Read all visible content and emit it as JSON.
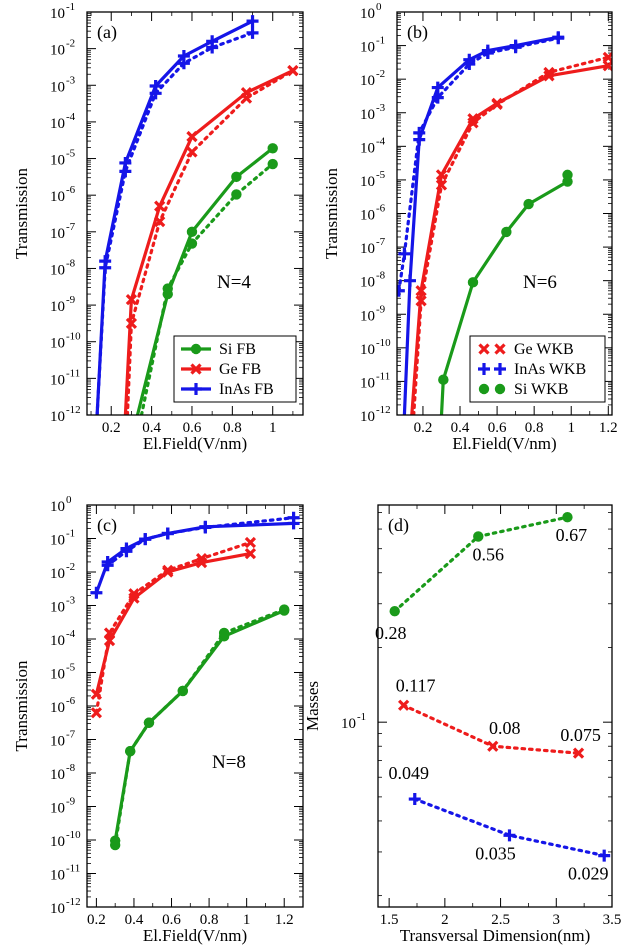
{
  "colors": {
    "green": "#1a9a1a",
    "red": "#ee1c1c",
    "blue": "#1515e8"
  },
  "chart_data": [
    {
      "id": "a",
      "type": "line",
      "panel_label": "(a)",
      "annotation": "N=4",
      "xlabel": "El.Field(V/nm)",
      "ylabel": "Transmission",
      "yscale": "log",
      "xlim": [
        0.08,
        1.15
      ],
      "ylim_exp": [
        -12,
        -1
      ],
      "xticks": [
        "0.2",
        "0.4",
        "0.6",
        "0.8",
        "1"
      ],
      "xtick_values": [
        0.2,
        0.4,
        0.6,
        0.8,
        1.0
      ],
      "legend": {
        "position": "bottom-right",
        "entries": [
          "Si FB",
          "Ge FB",
          "InAs FB"
        ]
      },
      "series": [
        {
          "name": "Si FB",
          "color": "green",
          "marker": "circle",
          "style": "solid",
          "x": [
            0.33,
            0.48,
            0.6,
            0.82,
            1.0
          ],
          "log10y": [
            -12,
            -8.7,
            -7.0,
            -5.5,
            -4.72
          ]
        },
        {
          "name": "",
          "color": "green",
          "marker": "circle",
          "style": "dotted",
          "x": [
            0.35,
            0.48,
            0.6,
            0.82,
            1.0
          ],
          "log10y": [
            -12,
            -8.55,
            -7.32,
            -5.98,
            -5.15
          ]
        },
        {
          "name": "Ge FB",
          "color": "red",
          "marker": "x",
          "style": "solid",
          "x": [
            0.27,
            0.3,
            0.44,
            0.6,
            0.87,
            1.1
          ],
          "log10y": [
            -12,
            -8.85,
            -6.3,
            -4.4,
            -3.2,
            -2.6
          ]
        },
        {
          "name": "",
          "color": "red",
          "marker": "x",
          "style": "dotted",
          "x": [
            0.28,
            0.3,
            0.44,
            0.6,
            0.87,
            1.1
          ],
          "log10y": [
            -12,
            -9.5,
            -6.72,
            -4.82,
            -3.35,
            -2.6
          ]
        },
        {
          "name": "InAs FB",
          "color": "blue",
          "marker": "plus",
          "style": "solid",
          "x": [
            0.13,
            0.17,
            0.27,
            0.42,
            0.56,
            0.7,
            0.9
          ],
          "log10y": [
            -12,
            -7.8,
            -5.12,
            -3.02,
            -2.2,
            -1.8,
            -1.25
          ]
        },
        {
          "name": "",
          "color": "blue",
          "marker": "plus",
          "style": "dotted",
          "x": [
            0.13,
            0.17,
            0.27,
            0.42,
            0.56,
            0.7,
            0.9
          ],
          "log10y": [
            -12,
            -7.98,
            -5.35,
            -3.22,
            -2.4,
            -1.97,
            -1.57
          ]
        }
      ]
    },
    {
      "id": "b",
      "type": "line",
      "panel_label": "(b)",
      "annotation": "N=6",
      "xlabel": "El.Field(V/nm)",
      "ylabel": "Transmission",
      "yscale": "log",
      "xlim": [
        0.06,
        1.22
      ],
      "ylim_exp": [
        -12,
        0
      ],
      "xticks": [
        "0.2",
        "0.4",
        "0.6",
        "0.8",
        "1",
        "1.2"
      ],
      "xtick_values": [
        0.2,
        0.4,
        0.6,
        0.8,
        1.0,
        1.2
      ],
      "legend": {
        "position": "bottom-right",
        "entries": [
          "Ge WKB",
          "InAs WKB",
          "Si WKB"
        ]
      },
      "series": [
        {
          "name": "",
          "color": "blue",
          "marker": "plus",
          "style": "solid",
          "x": [
            0.1,
            0.13,
            0.18,
            0.28,
            0.45,
            0.55,
            0.7,
            0.93
          ],
          "log10y": [
            -12,
            -8.0,
            -3.8,
            -2.25,
            -1.42,
            -1.15,
            -1.0,
            -0.75
          ]
        },
        {
          "name": "InAs WKB",
          "color": "blue",
          "marker": "plus",
          "style": "dotted",
          "x": [
            0.07,
            0.1,
            0.18,
            0.28,
            0.45,
            0.55,
            0.7,
            0.93
          ],
          "log10y": [
            -8.3,
            -7.2,
            -3.6,
            -2.55,
            -1.55,
            -1.22,
            -1.05,
            -0.78
          ]
        },
        {
          "name": "",
          "color": "red",
          "marker": "x",
          "style": "solid",
          "x": [
            0.14,
            0.19,
            0.3,
            0.47,
            0.6,
            0.88,
            1.2
          ],
          "log10y": [
            -12,
            -8.3,
            -4.85,
            -3.18,
            -2.72,
            -1.9,
            -1.6
          ]
        },
        {
          "name": "Ge WKB",
          "color": "red",
          "marker": "x",
          "style": "dotted",
          "x": [
            0.15,
            0.19,
            0.3,
            0.47,
            0.6,
            0.88,
            1.2
          ],
          "log10y": [
            -12,
            -8.6,
            -5.15,
            -3.3,
            -2.75,
            -1.8,
            -1.35
          ]
        },
        {
          "name": "",
          "color": "green",
          "marker": "circle",
          "style": "solid",
          "x": [
            0.3,
            0.31,
            0.47,
            0.65,
            0.77,
            0.98
          ],
          "log10y": [
            -12,
            -10.95,
            -8.05,
            -6.55,
            -5.72,
            -5.05
          ]
        },
        {
          "name": "Si WKB",
          "color": "green",
          "marker": "circle",
          "style": "dotted",
          "x": [
            0.98
          ],
          "log10y": [
            -4.85
          ]
        }
      ]
    },
    {
      "id": "c",
      "type": "line",
      "panel_label": "(c)",
      "annotation": "N=8",
      "xlabel": "El.Field(V/nm)",
      "ylabel": "Transmission",
      "yscale": "log",
      "xlim": [
        0.15,
        1.3
      ],
      "ylim_exp": [
        -12,
        0
      ],
      "xticks": [
        "0.2",
        "0.4",
        "0.6",
        "0.8",
        "1",
        "1.2"
      ],
      "xtick_values": [
        0.2,
        0.4,
        0.6,
        0.8,
        1.0,
        1.2
      ],
      "series": [
        {
          "name": "",
          "color": "blue",
          "marker": "plus",
          "style": "solid",
          "x": [
            0.2,
            0.26,
            0.36,
            0.46,
            0.58,
            0.78,
            1.25
          ],
          "log10y": [
            -2.62,
            -1.7,
            -1.3,
            -1.02,
            -0.85,
            -0.65,
            -0.55
          ]
        },
        {
          "name": "",
          "color": "blue",
          "marker": "plus",
          "style": "dotted",
          "x": [
            0.26,
            0.36,
            0.46,
            0.58,
            0.78,
            1.25
          ],
          "log10y": [
            -1.8,
            -1.38,
            -1.02,
            -0.85,
            -0.67,
            -0.38
          ]
        },
        {
          "name": "",
          "color": "red",
          "marker": "x",
          "style": "solid",
          "x": [
            0.2,
            0.27,
            0.4,
            0.58,
            0.76,
            1.02
          ],
          "log10y": [
            -5.65,
            -4.05,
            -2.78,
            -2.0,
            -1.72,
            -1.45
          ]
        },
        {
          "name": "",
          "color": "red",
          "marker": "x",
          "style": "dotted",
          "x": [
            0.2,
            0.27,
            0.4,
            0.58,
            0.76,
            1.02
          ],
          "log10y": [
            -6.2,
            -3.82,
            -2.65,
            -1.95,
            -1.6,
            -1.12
          ]
        },
        {
          "name": "",
          "color": "green",
          "marker": "circle",
          "style": "solid",
          "x": [
            0.3,
            0.38,
            0.48,
            0.66,
            0.88,
            1.2
          ],
          "log10y": [
            -10.02,
            -7.35,
            -6.5,
            -5.55,
            -3.92,
            -3.15
          ]
        },
        {
          "name": "",
          "color": "green",
          "marker": "circle",
          "style": "dotted",
          "x": [
            0.3,
            0.38,
            0.48,
            0.66,
            0.88,
            1.2
          ],
          "log10y": [
            -10.15,
            -7.35,
            -6.5,
            -5.55,
            -3.82,
            -3.12
          ]
        }
      ]
    },
    {
      "id": "d",
      "type": "scatter",
      "panel_label": "(d)",
      "xlabel": "Transversal Dimension(nm)",
      "ylabel": "Masses",
      "yscale": "log",
      "xlim": [
        1.4,
        3.5
      ],
      "ylim": [
        0.018,
        0.75
      ],
      "xticks": [
        "1.5",
        "2",
        "2.5",
        "3",
        "3.5"
      ],
      "xtick_values": [
        1.5,
        2.0,
        2.5,
        3.0,
        3.5
      ],
      "ytick_label": "10",
      "ytick_sup": "-1",
      "series": [
        {
          "name": "",
          "color": "green",
          "marker": "circle",
          "style": "dotted",
          "x": [
            1.55,
            2.3,
            3.1
          ],
          "y": [
            0.28,
            0.56,
            0.67
          ],
          "labels": [
            "0.28",
            "0.56",
            "0.67"
          ]
        },
        {
          "name": "",
          "color": "red",
          "marker": "x",
          "style": "dotted",
          "x": [
            1.63,
            2.43,
            3.2
          ],
          "y": [
            0.117,
            0.08,
            0.075
          ],
          "labels": [
            "0.117",
            "0.08",
            "0.075"
          ]
        },
        {
          "name": "",
          "color": "blue",
          "marker": "plus",
          "style": "dotted",
          "x": [
            1.73,
            2.58,
            3.43
          ],
          "y": [
            0.049,
            0.035,
            0.029
          ],
          "labels": [
            "0.049",
            "0.035",
            "0.029"
          ]
        }
      ]
    }
  ]
}
